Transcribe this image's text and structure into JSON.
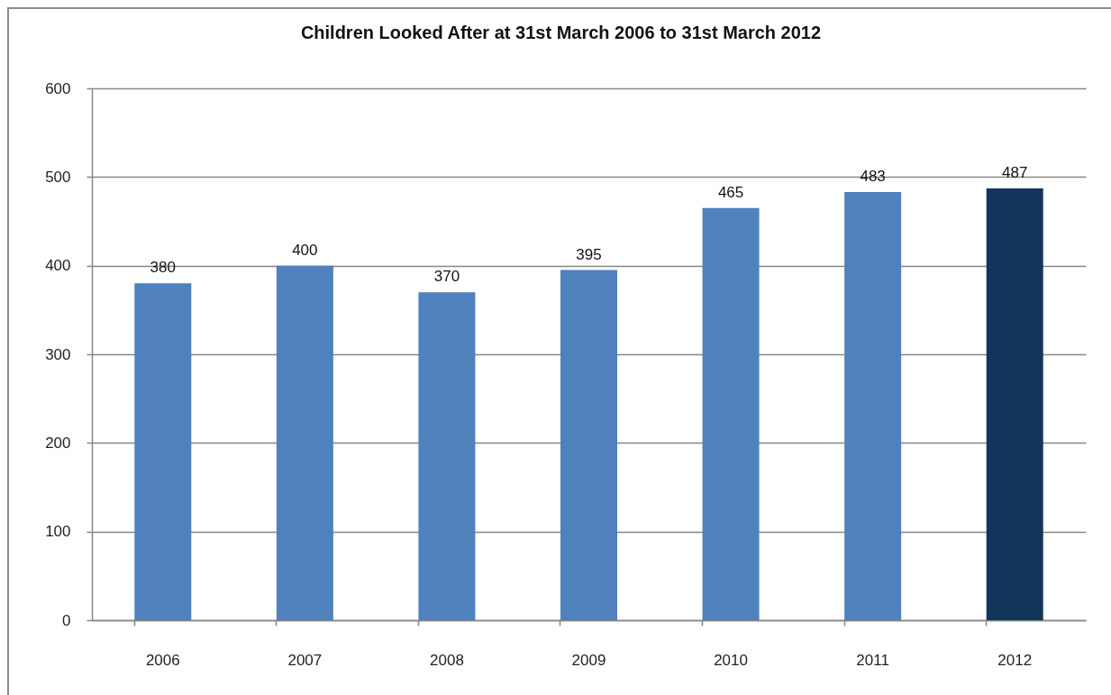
{
  "chart_data": {
    "type": "bar",
    "title": "Children Looked After at 31st March 2006 to 31st March 2012",
    "categories": [
      "2006",
      "2007",
      "2008",
      "2009",
      "2010",
      "2011",
      "2012"
    ],
    "values": [
      380,
      400,
      370,
      395,
      465,
      483,
      487
    ],
    "colors": [
      "#4f81bd",
      "#4f81bd",
      "#4f81bd",
      "#4f81bd",
      "#4f81bd",
      "#4f81bd",
      "#12355b"
    ],
    "ylim": [
      0,
      600
    ],
    "yticks": [
      0,
      100,
      200,
      300,
      400,
      500,
      600
    ],
    "grid": "y",
    "data_labels": true
  }
}
